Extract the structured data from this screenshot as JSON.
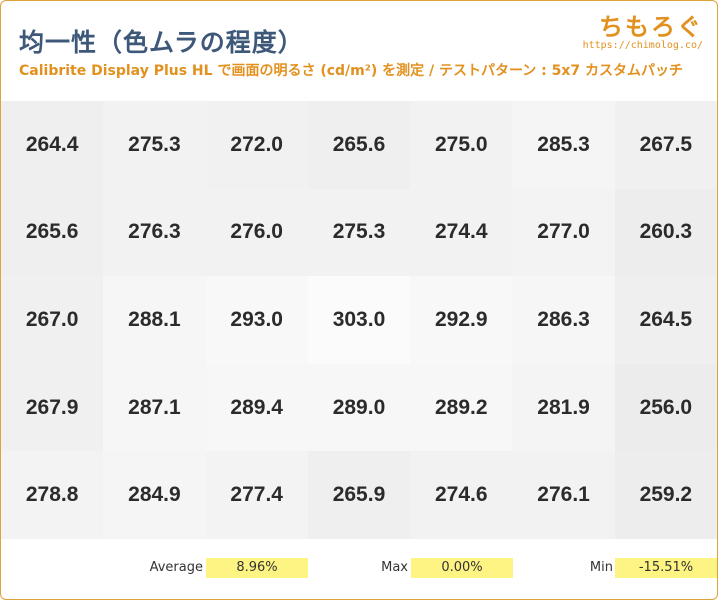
{
  "header": {
    "title": "均一性（色ムラの程度）",
    "subtitle": "Calibrite Display Plus HL で画面の明るさ (cd/m²) を測定 / テストパターン : 5x7 カスタムパッチ",
    "logo_text": "ちもろぐ",
    "logo_url": "https://chimolog.co/"
  },
  "chart_data": {
    "type": "heatmap",
    "title": "均一性（色ムラの程度）",
    "subtitle": "Calibrite Display Plus HL で画面の明るさ (cd/m²) を測定 / テストパターン : 5x7 カスタムパッチ",
    "rows": 5,
    "cols": 7,
    "values": [
      [
        "264.4",
        "275.3",
        "272.0",
        "265.6",
        "275.0",
        "285.3",
        "267.5"
      ],
      [
        "265.6",
        "276.3",
        "276.0",
        "275.3",
        "274.4",
        "277.0",
        "260.3"
      ],
      [
        "267.0",
        "288.1",
        "293.0",
        "303.0",
        "292.9",
        "286.3",
        "264.5"
      ],
      [
        "267.9",
        "287.1",
        "289.4",
        "289.0",
        "289.2",
        "281.9",
        "256.0"
      ],
      [
        "278.8",
        "284.9",
        "277.4",
        "265.9",
        "274.6",
        "276.1",
        "259.2"
      ]
    ],
    "value_range": [
      256.0,
      303.0
    ]
  },
  "stats": {
    "average_label": "Average",
    "average_value": "8.96%",
    "max_label": "Max",
    "max_value": "0.00%",
    "min_label": "Min",
    "min_value": "-15.51%"
  }
}
